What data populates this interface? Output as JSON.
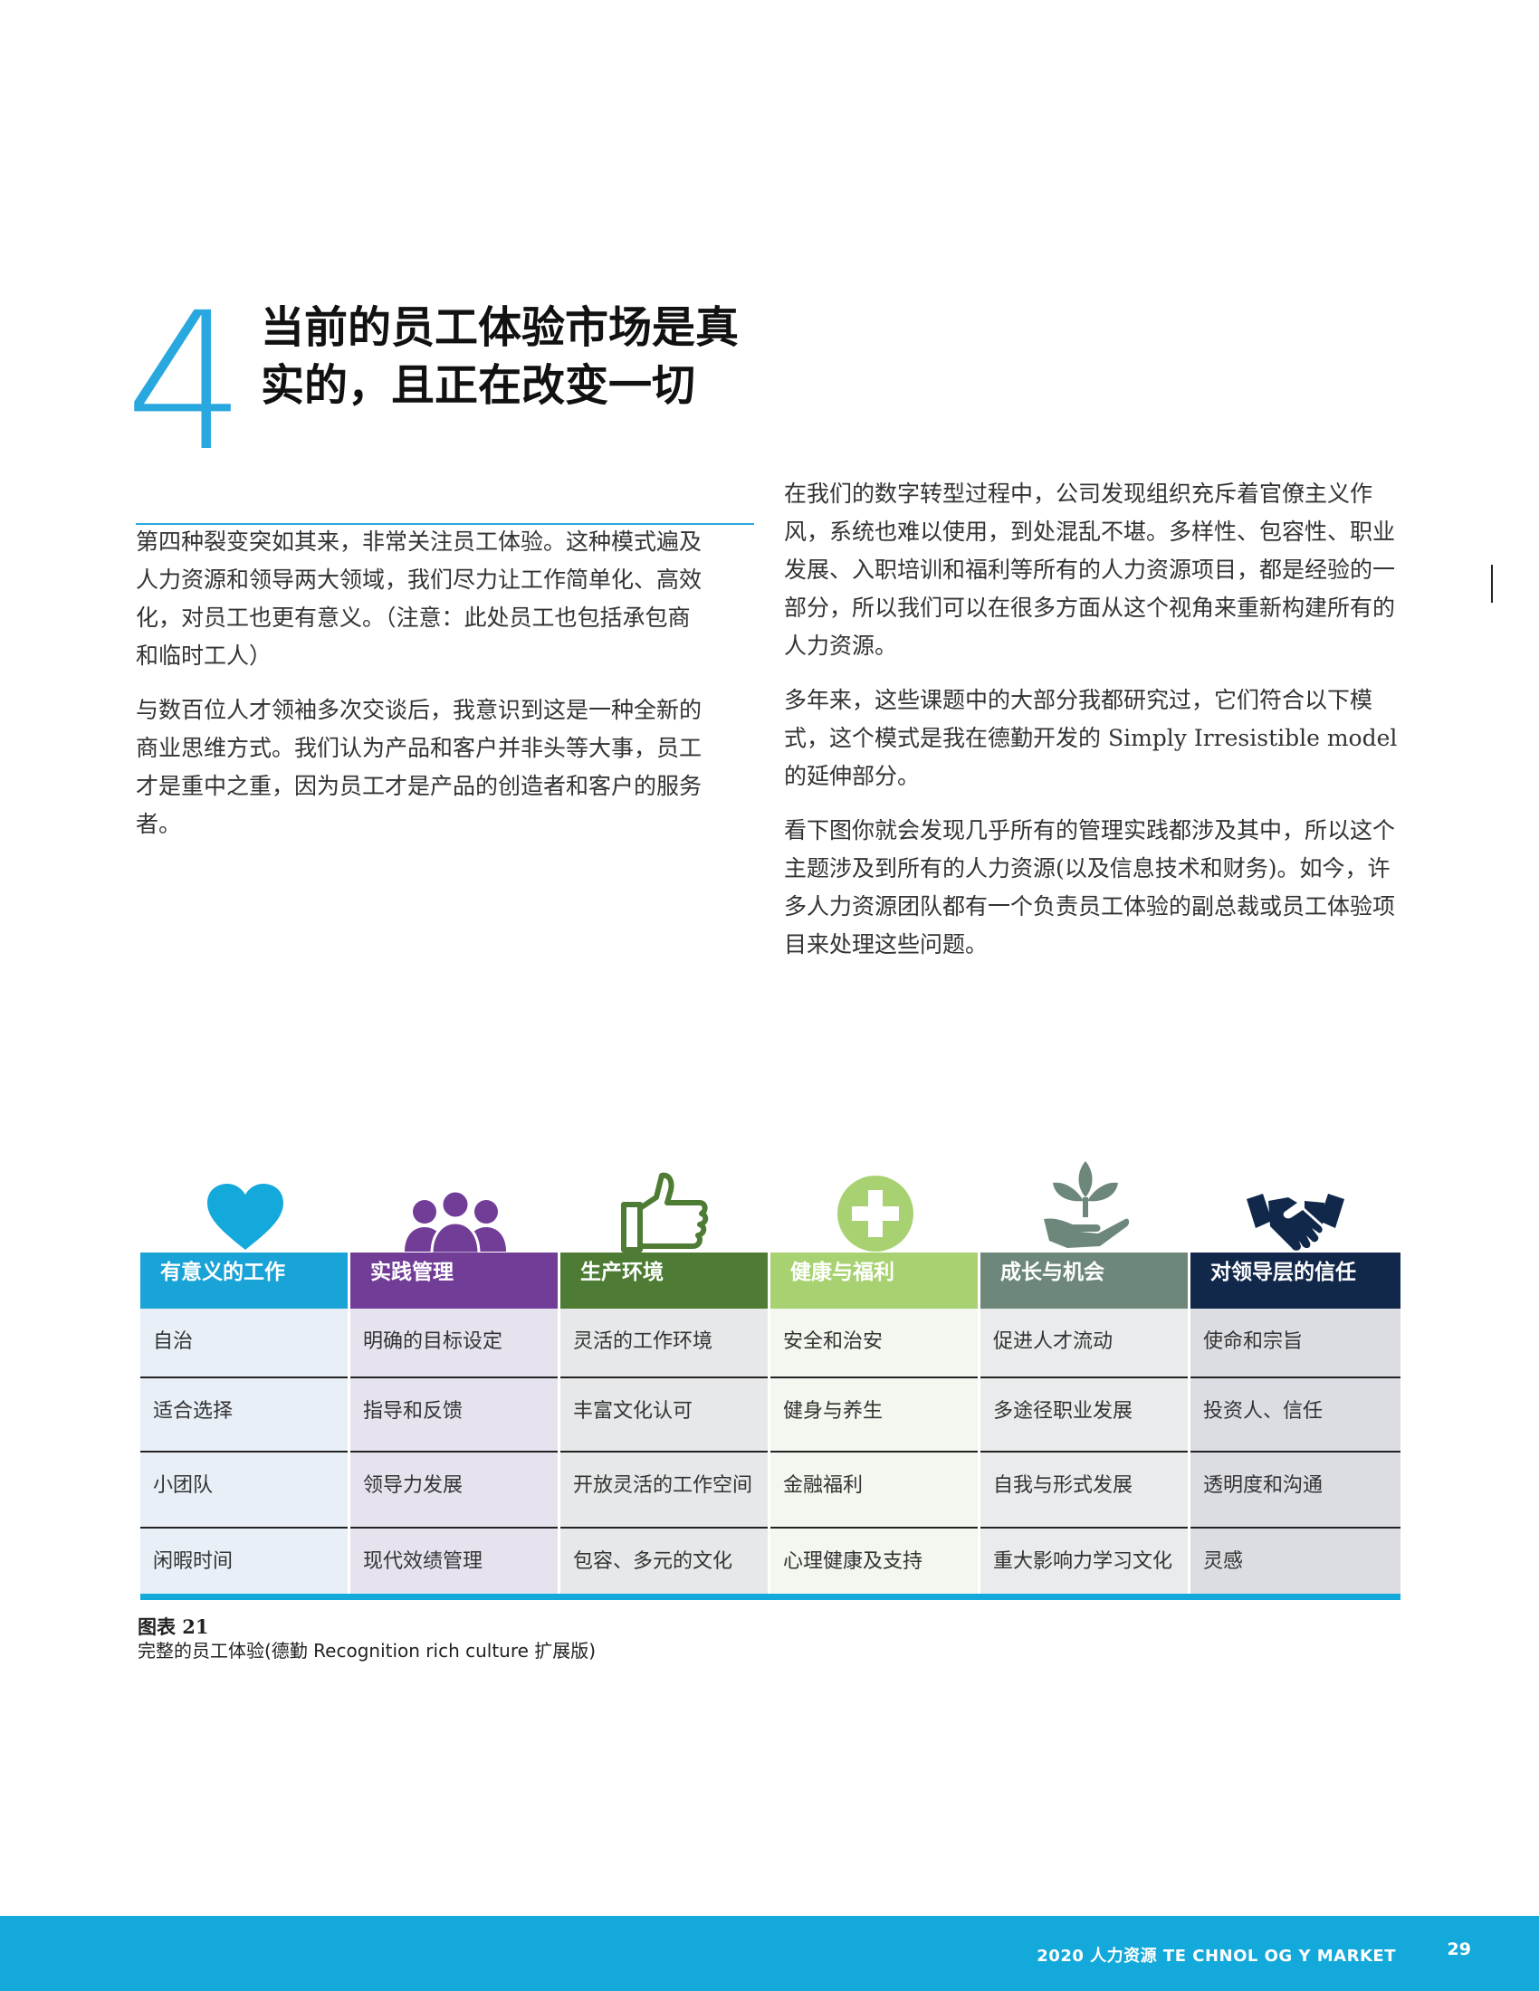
{
  "chapter": {
    "number": "4",
    "title_line1": "当前的员工体验市场是真",
    "title_line2": "实的，且正在改变一切"
  },
  "body": {
    "left": [
      "第四种裂变突如其来，非常关注员工体验。这种模式遍及人力资源和领导两大领域，我们尽力让工作简单化、高效化，对员工也更有意义。（注意：此处员工也包括承包商和临时工人）",
      "与数百位人才领袖多次交谈后，我意识到这是一种全新的商业思维方式。我们认为产品和客户并非头等大事，员工才是重中之重，因为员工才是产品的创造者和客户的服务者。"
    ],
    "right": [
      "在我们的数字转型过程中，公司发现组织充斥着官僚主义作风，系统也难以使用，到处混乱不堪。多样性、包容性、职业发展、入职培训和福利等所有的人力资源项目，都是经验的一部分，所以我们可以在很多方面从这个视角来重新构建所有的人力资源。",
      "多年来，这些课题中的大部分我都研究过，它们符合以下模式，这个模式是我在德勤开发的 Simply Irresistible model 的延伸部分。",
      "看下图你就会发现几乎所有的管理实践都涉及其中，所以这个主题涉及到所有的人力资源(以及信息技术和财务)。如今，许多人力资源团队都有一个负责员工体验的副总裁或员工体验项目来处理这些问题。"
    ]
  },
  "figure": {
    "columns": [
      {
        "icon": "heart-icon",
        "header": "有意义的工作",
        "header_color": "#1aa3d6",
        "cell_color": "#e8eff7",
        "items": [
          "自治",
          "适合选择",
          "小团队",
          "闲暇时间"
        ]
      },
      {
        "icon": "team-icon",
        "header": "实践管理",
        "header_color": "#713d97",
        "cell_color": "#e6e3ef",
        "items": [
          "明确的目标设定",
          "指导和反馈",
          "领导力发展",
          "现代效绩管理"
        ]
      },
      {
        "icon": "thumbs-up-icon",
        "header": "生产环境",
        "header_color": "#4e7c34",
        "cell_color": "#e7e8e9",
        "items": [
          "灵活的工作环境",
          "丰富文化认可",
          "开放灵活的工作空间",
          "包容、多元的文化"
        ]
      },
      {
        "icon": "plus-circle-icon",
        "header": "健康与福利",
        "header_color": "#a8d272",
        "cell_color": "#f3f7ef",
        "items": [
          "安全和治安",
          "健身与养生",
          "金融福利",
          "心理健康及支持"
        ]
      },
      {
        "icon": "plant-hand-icon",
        "header": "成长与机会",
        "header_color": "#6d887b",
        "cell_color": "#eaebec",
        "items": [
          "促进人才流动",
          "多途径职业发展",
          "自我与形式发展",
          "重大影响力学习文化"
        ]
      },
      {
        "icon": "handshake-icon",
        "header": "对领导层的信任",
        "header_color": "#12284a",
        "cell_color": "#dcdde2",
        "items": [
          "使命和宗旨",
          "投资人、信任",
          "透明度和沟通",
          "灵感"
        ]
      }
    ],
    "caption_title": "图表 21",
    "caption_sub": "完整的员工体验(德勤 Recognition rich culture 扩展版)"
  },
  "footer": {
    "text": "2020 人力资源 TE CHNOL OG Y MARKET",
    "page": "29",
    "bg_color": "#14a9db"
  }
}
